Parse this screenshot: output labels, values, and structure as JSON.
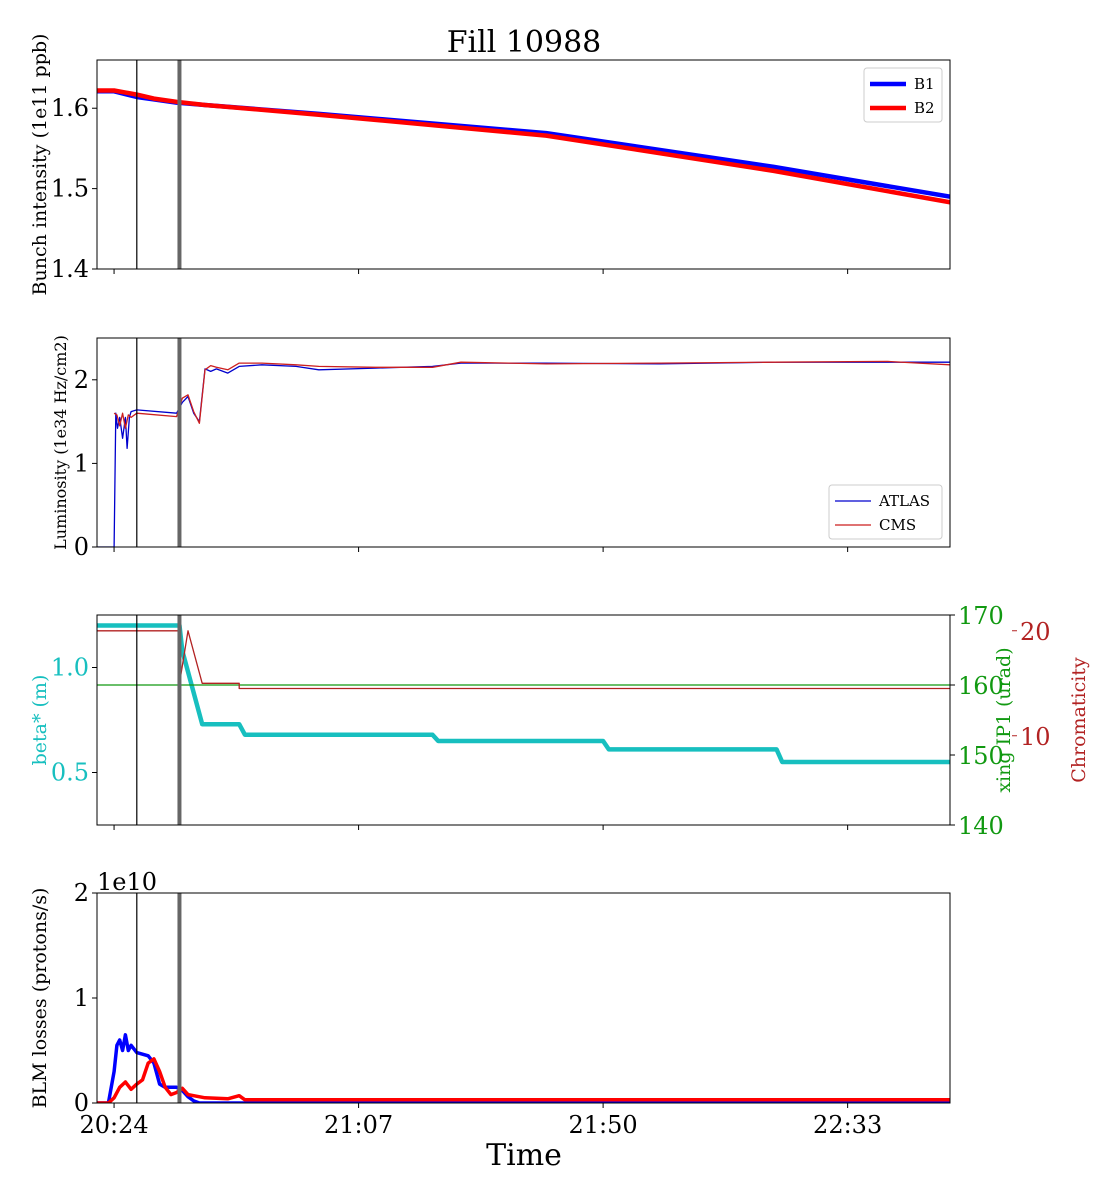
{
  "figure": {
    "title": "Fill 10988",
    "xlabel": "Time",
    "x_ticks": [
      {
        "t": 24,
        "label": "20:24"
      },
      {
        "t": 67,
        "label": "21:07"
      },
      {
        "t": 110,
        "label": "21:50"
      },
      {
        "t": 153,
        "label": "22:33"
      }
    ],
    "x_range": [
      21,
      171
    ],
    "markers": {
      "thin_line_t": 28,
      "thick_line_t": 35.5
    },
    "colors": {
      "B1": "#0000ff",
      "B2": "#ff0000",
      "ATLAS": "#0000cd",
      "CMS": "#cc1f1f",
      "beta": "#17bfbf",
      "xing": "#119911",
      "chroma": "#b22222",
      "marker": "#666666"
    }
  },
  "chart_data": [
    {
      "type": "line",
      "ylabel": "Bunch intensity (1e11 ppb)",
      "ylim": [
        1.4,
        1.66
      ],
      "yticks": [
        1.4,
        1.5,
        1.6
      ],
      "legend": "top-right",
      "series": [
        {
          "name": "B1",
          "x": [
            21,
            24,
            28,
            31,
            35,
            40,
            60,
            100,
            140,
            171
          ],
          "y": [
            1.621,
            1.621,
            1.614,
            1.611,
            1.607,
            1.604,
            1.593,
            1.569,
            1.527,
            1.49
          ]
        },
        {
          "name": "B2",
          "x": [
            21,
            24,
            28,
            31,
            35,
            40,
            60,
            100,
            140,
            171
          ],
          "y": [
            1.622,
            1.622,
            1.617,
            1.612,
            1.608,
            1.604,
            1.592,
            1.566,
            1.522,
            1.483
          ]
        }
      ]
    },
    {
      "type": "line",
      "ylabel": "Luminosity (1e34 Hz/cm2)",
      "ylim": [
        0,
        2.5
      ],
      "yticks": [
        0,
        1,
        2
      ],
      "legend": "bottom-right",
      "series": [
        {
          "name": "ATLAS",
          "x": [
            21,
            24,
            24.3,
            24.6,
            25,
            25.5,
            26,
            26.3,
            26.7,
            27,
            28,
            35,
            36,
            37,
            38,
            39,
            40,
            41,
            42,
            44,
            46,
            50,
            56,
            60,
            70,
            80,
            85,
            100,
            120,
            140,
            160,
            171
          ],
          "y": [
            0,
            0,
            1.6,
            1.42,
            1.55,
            1.3,
            1.55,
            1.18,
            1.55,
            1.62,
            1.64,
            1.6,
            1.73,
            1.8,
            1.6,
            1.5,
            2.13,
            2.1,
            2.13,
            2.08,
            2.16,
            2.18,
            2.16,
            2.12,
            2.14,
            2.16,
            2.2,
            2.2,
            2.19,
            2.21,
            2.21,
            2.21
          ]
        },
        {
          "name": "CMS",
          "x": [
            24,
            24.5,
            25,
            25.5,
            26,
            26.5,
            27,
            28,
            35,
            36,
            37,
            38,
            39,
            40,
            41,
            42,
            44,
            46,
            50,
            56,
            60,
            70,
            80,
            85,
            100,
            120,
            140,
            160,
            171
          ],
          "y": [
            1.6,
            1.58,
            1.45,
            1.6,
            1.42,
            1.58,
            1.55,
            1.6,
            1.56,
            1.78,
            1.82,
            1.62,
            1.48,
            2.12,
            2.17,
            2.15,
            2.12,
            2.2,
            2.2,
            2.18,
            2.16,
            2.15,
            2.15,
            2.21,
            2.19,
            2.2,
            2.21,
            2.22,
            2.18
          ]
        }
      ]
    },
    {
      "type": "line",
      "ylabel": "beta* (m)",
      "ylim": [
        0.25,
        1.25
      ],
      "yticks": [
        0.5,
        1.0
      ],
      "ylabel_right": "xing IP1 (urad)",
      "ylim_right": [
        140,
        170
      ],
      "yticks_right": [
        140,
        150,
        160,
        170
      ],
      "ylabel_right2": "Chromaticity",
      "ylim_right2": [
        1.5,
        21.5
      ],
      "yticks_right2": [
        10,
        20
      ],
      "series": [
        {
          "name": "beta*",
          "axis": "left",
          "x": [
            21,
            35.5,
            36,
            39.5,
            40,
            46,
            47,
            80,
            81,
            110,
            111,
            140.5,
            141.5,
            171
          ],
          "y": [
            1.2,
            1.2,
            1.08,
            0.73,
            0.73,
            0.73,
            0.68,
            0.68,
            0.65,
            0.65,
            0.61,
            0.61,
            0.55,
            0.55
          ]
        },
        {
          "name": "xing IP1",
          "axis": "right",
          "x": [
            21,
            171
          ],
          "y": [
            160,
            160
          ]
        },
        {
          "name": "Chromaticity",
          "axis": "right2",
          "x": [
            21,
            35.5,
            35.5,
            37,
            39.5,
            46,
            46,
            171
          ],
          "y": [
            20,
            20,
            15,
            20,
            15,
            15,
            14.5,
            14.5
          ]
        }
      ]
    },
    {
      "type": "line",
      "ylabel": "BLM losses (protons/s)",
      "ylim": [
        0,
        2
      ],
      "yticks": [
        0,
        1,
        2
      ],
      "scale_label": "1e10",
      "series": [
        {
          "name": "B1",
          "x": [
            21,
            23,
            24,
            24.5,
            25,
            25.5,
            26,
            26.5,
            27,
            28,
            30,
            31,
            32,
            33,
            34,
            35,
            36,
            37,
            38,
            39,
            46,
            171
          ],
          "y": [
            0,
            0,
            0.3,
            0.55,
            0.6,
            0.5,
            0.65,
            0.5,
            0.55,
            0.48,
            0.45,
            0.38,
            0.18,
            0.15,
            0.15,
            0.15,
            0.12,
            0.06,
            0.02,
            0,
            0,
            0
          ]
        },
        {
          "name": "B2",
          "x": [
            21,
            23,
            24,
            25,
            26,
            27,
            28,
            29,
            30,
            31,
            32,
            33,
            34,
            35,
            36,
            37,
            38,
            40,
            44,
            46,
            47,
            60,
            80,
            120,
            171
          ],
          "y": [
            0,
            0,
            0.05,
            0.15,
            0.2,
            0.13,
            0.18,
            0.22,
            0.38,
            0.42,
            0.3,
            0.15,
            0.08,
            0.1,
            0.14,
            0.08,
            0.07,
            0.05,
            0.04,
            0.07,
            0.03,
            0.03,
            0.03,
            0.03,
            0.03
          ]
        }
      ]
    }
  ]
}
